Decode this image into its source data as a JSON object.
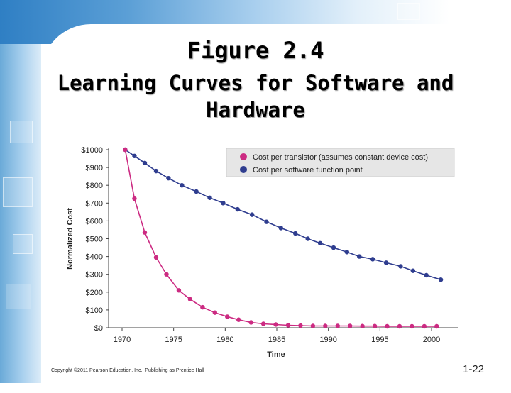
{
  "slide": {
    "title": "Figure 2.4",
    "subtitle_line1": "Learning Curves for Software and",
    "subtitle_line2": "Hardware",
    "copyright": "Copyright ©2011 Pearson Education, Inc., Publishing as Prentice Hall",
    "slide_number": "1-22"
  },
  "chart_data": {
    "type": "line",
    "xlabel": "Time",
    "ylabel": "Normalized Cost",
    "xlim": [
      1970,
      2003
    ],
    "ylim": [
      0,
      1000
    ],
    "x_ticks": [
      1970,
      1975,
      1980,
      1985,
      1990,
      1995,
      2000
    ],
    "y_tick_values": [
      0,
      100,
      200,
      300,
      400,
      500,
      600,
      700,
      800,
      900,
      1000
    ],
    "y_tick_labels": [
      "$0",
      "$100",
      "$200",
      "$300",
      "$400",
      "$500",
      "$600",
      "$700",
      "$800",
      "$900",
      "$1000"
    ],
    "legend_position": "top-right",
    "grid": false,
    "series": [
      {
        "name": "Cost per transistor (assumes constant device cost)",
        "color": "#cc2b82",
        "x": [
          1970.3,
          1971.2,
          1972.2,
          1973.3,
          1974.3,
          1975.5,
          1976.6,
          1977.8,
          1979,
          1980.2,
          1981.3,
          1982.5,
          1983.7,
          1984.9,
          1986.1,
          1987.3,
          1988.5,
          1989.7,
          1990.9,
          1992.1,
          1993.3,
          1994.5,
          1995.7,
          1996.9,
          1998.1,
          1999.3,
          2000.5
        ],
        "y": [
          1000,
          725,
          535,
          395,
          300,
          210,
          160,
          115,
          85,
          62,
          45,
          30,
          22,
          18,
          14,
          12,
          10,
          10,
          10,
          10,
          9,
          9,
          8,
          8,
          8,
          8,
          8
        ]
      },
      {
        "name": "Cost per software function point",
        "color": "#2f3d8f",
        "x": [
          1970.3,
          1971.2,
          1972.2,
          1973.3,
          1974.5,
          1975.8,
          1977.2,
          1978.5,
          1979.8,
          1981.2,
          1982.6,
          1984,
          1985.4,
          1986.8,
          1988,
          1989.2,
          1990.5,
          1991.8,
          1993,
          1994.3,
          1995.6,
          1997,
          1998.2,
          1999.5,
          2000.9
        ],
        "y": [
          1000,
          965,
          925,
          880,
          840,
          800,
          765,
          730,
          700,
          665,
          635,
          595,
          560,
          530,
          500,
          475,
          450,
          425,
          400,
          385,
          365,
          345,
          320,
          295,
          270
        ]
      }
    ]
  }
}
